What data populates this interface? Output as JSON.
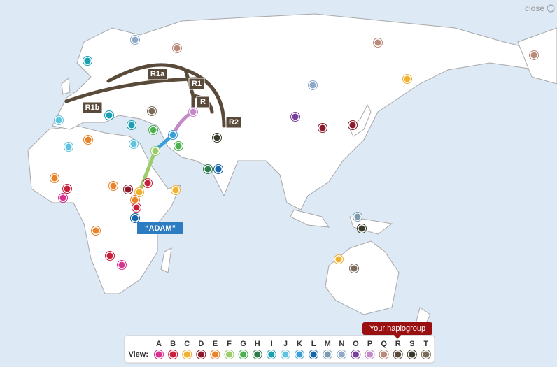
{
  "close": "close",
  "routes": [
    {
      "label": "R1a"
    },
    {
      "label": "R1"
    },
    {
      "label": "R"
    },
    {
      "label": "R1b"
    },
    {
      "label": "R2"
    }
  ],
  "origin": "“ADAM”",
  "legend": {
    "label": "View:",
    "groups": [
      {
        "letter": "A",
        "color": "#d6338e"
      },
      {
        "letter": "B",
        "color": "#c8203c"
      },
      {
        "letter": "C",
        "color": "#f0b030"
      },
      {
        "letter": "D",
        "color": "#8b1a2a"
      },
      {
        "letter": "E",
        "color": "#e8832a"
      },
      {
        "letter": "F",
        "color": "#9ccc6a"
      },
      {
        "letter": "G",
        "color": "#4caf50"
      },
      {
        "letter": "H",
        "color": "#2e7d4a"
      },
      {
        "letter": "I",
        "color": "#1aa0b0"
      },
      {
        "letter": "J",
        "color": "#5fc3e0"
      },
      {
        "letter": "K",
        "color": "#3a9fd8"
      },
      {
        "letter": "L",
        "color": "#1565a8"
      },
      {
        "letter": "M",
        "color": "#7a9ab0"
      },
      {
        "letter": "N",
        "color": "#8ea8c8"
      },
      {
        "letter": "O",
        "color": "#7b3f9e"
      },
      {
        "letter": "P",
        "color": "#c48ac8"
      },
      {
        "letter": "Q",
        "color": "#b88a7a"
      },
      {
        "letter": "R",
        "color": "#5a4a3a"
      },
      {
        "letter": "S",
        "color": "#3a3a2a"
      },
      {
        "letter": "T",
        "color": "#7a6a5a"
      }
    ]
  },
  "tooltip": "Your haplogroup"
}
